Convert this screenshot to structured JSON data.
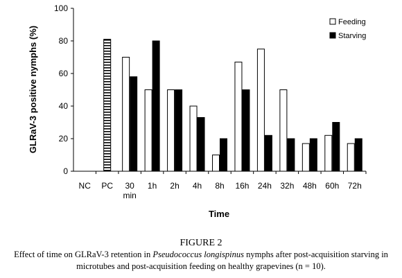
{
  "chart_data": {
    "type": "bar",
    "categories": [
      "NC",
      "PC",
      "30\nmin",
      "1h",
      "2h",
      "4h",
      "8h",
      "16h",
      "24h",
      "32h",
      "48h",
      "60h",
      "72h"
    ],
    "series": [
      {
        "name": "Feeding",
        "values": [
          null,
          null,
          70,
          50,
          50,
          40,
          10,
          67,
          75,
          50,
          17,
          22,
          17
        ],
        "fill": "#ffffff"
      },
      {
        "name": "Starving",
        "values": [
          null,
          null,
          58,
          80,
          50,
          33,
          20,
          50,
          22,
          20,
          20,
          30,
          20
        ],
        "fill": "#000000"
      }
    ],
    "pc_value": 81,
    "nc_value": 0,
    "xlabel": "Time",
    "ylabel": "GLRaV-3 positive nymphs  (%)",
    "ylim": [
      0,
      100
    ],
    "yticks": [
      0,
      20,
      40,
      60,
      80,
      100
    ],
    "grid": false,
    "legend_position": "top-right"
  },
  "caption": {
    "figure_label": "FIGURE 2",
    "text_before": "Effect of time on GLRaV-3 retention in ",
    "species": "Pseudococcus longispinus",
    "text_after": " nymphs after post-acquisition starving in microtubes and post-acquisition feeding on healthy grapevines (n = 10)."
  },
  "colors": {
    "axis": "#000000",
    "feeding_fill": "#ffffff",
    "starving_fill": "#000000",
    "pc_pattern": "horizontal-stripes"
  }
}
